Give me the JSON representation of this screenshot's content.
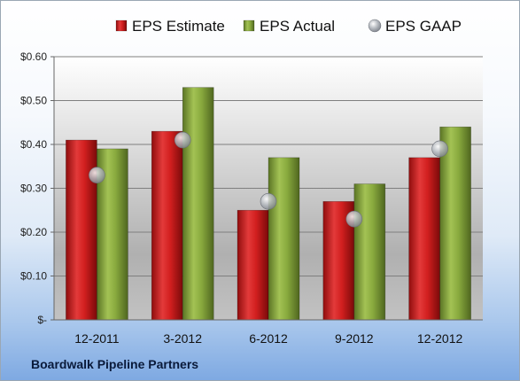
{
  "company": "Boardwalk Pipeline Partners",
  "chart_data": {
    "type": "bar",
    "title": "",
    "xlabel": "",
    "ylabel": "",
    "categories": [
      "12-2011",
      "3-2012",
      "6-2012",
      "9-2012",
      "12-2012"
    ],
    "series": [
      {
        "name": "EPS Estimate",
        "kind": "bar",
        "color": "#cc1f1f",
        "values": [
          0.41,
          0.43,
          0.25,
          0.27,
          0.37
        ]
      },
      {
        "name": "EPS Actual",
        "kind": "bar",
        "color": "#86a83c",
        "values": [
          0.39,
          0.53,
          0.37,
          0.31,
          0.44
        ]
      },
      {
        "name": "EPS GAAP",
        "kind": "marker",
        "color": "#9aa0a8",
        "values": [
          0.33,
          0.41,
          0.27,
          0.23,
          0.39
        ]
      }
    ],
    "ylim": [
      0,
      0.6
    ],
    "yticks": [
      0,
      0.1,
      0.2,
      0.3,
      0.4,
      0.5,
      0.6
    ],
    "ytick_labels": [
      "$-",
      "$0.10",
      "$0.20",
      "$0.30",
      "$0.40",
      "$0.50",
      "$0.60"
    ],
    "grid": true,
    "legend": "top"
  }
}
